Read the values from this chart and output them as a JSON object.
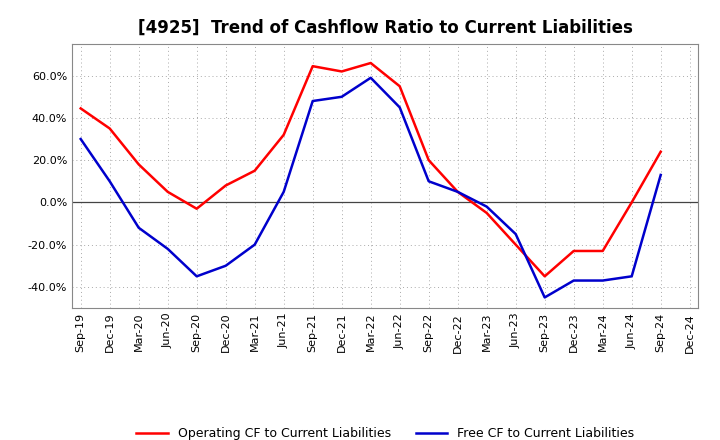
{
  "title": "[4925]  Trend of Cashflow Ratio to Current Liabilities",
  "x_labels": [
    "Sep-19",
    "Dec-19",
    "Mar-20",
    "Jun-20",
    "Sep-20",
    "Dec-20",
    "Mar-21",
    "Jun-21",
    "Sep-21",
    "Dec-21",
    "Mar-22",
    "Jun-22",
    "Sep-22",
    "Dec-22",
    "Mar-23",
    "Jun-23",
    "Sep-23",
    "Dec-23",
    "Mar-24",
    "Jun-24",
    "Sep-24",
    "Dec-24"
  ],
  "operating_cf": [
    44.5,
    35.0,
    18.0,
    5.0,
    -3.0,
    8.0,
    15.0,
    32.0,
    64.5,
    62.0,
    66.0,
    55.0,
    20.0,
    5.0,
    -5.0,
    -20.0,
    -35.0,
    -23.0,
    -23.0,
    0.0,
    24.0,
    null
  ],
  "free_cf": [
    30.0,
    10.0,
    -12.0,
    -22.0,
    -35.0,
    -30.0,
    -20.0,
    5.0,
    48.0,
    50.0,
    59.0,
    45.0,
    10.0,
    5.0,
    -2.0,
    -15.0,
    -45.0,
    -37.0,
    -37.0,
    -35.0,
    13.0,
    null
  ],
  "ylim": [
    -50,
    75
  ],
  "yticks": [
    -40,
    -20,
    0,
    20,
    40,
    60
  ],
  "line_color_operating": "#ff0000",
  "line_color_free": "#0000cc",
  "background_color": "#ffffff",
  "plot_bg_color": "#ffffff",
  "grid_color": "#aaaaaa",
  "legend_operating": "Operating CF to Current Liabilities",
  "legend_free": "Free CF to Current Liabilities",
  "title_fontsize": 12,
  "tick_fontsize": 8,
  "legend_fontsize": 9,
  "line_width": 1.8
}
